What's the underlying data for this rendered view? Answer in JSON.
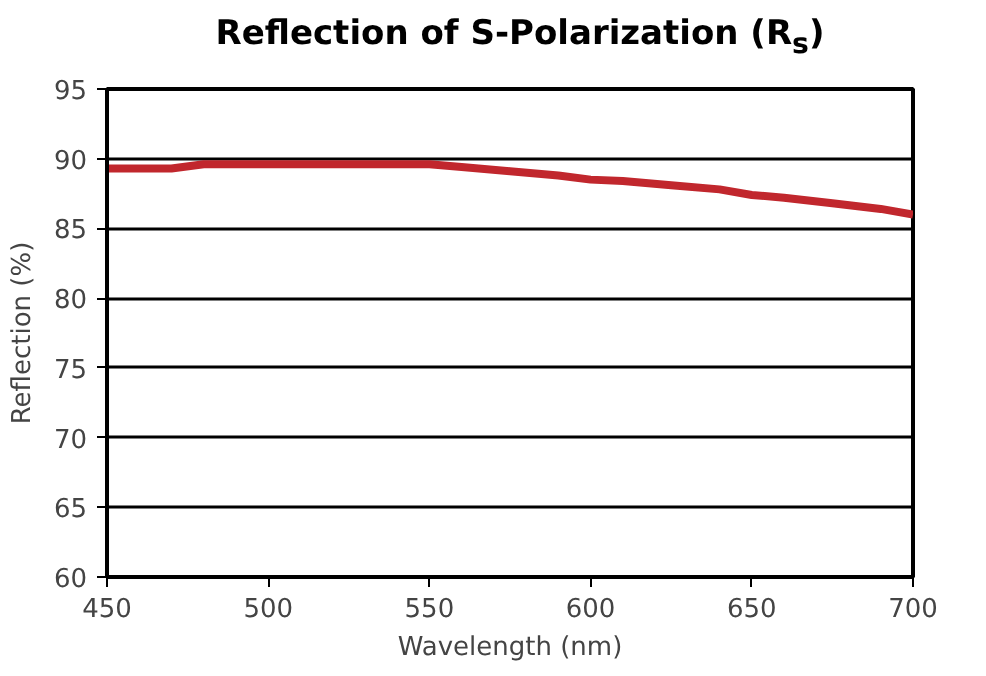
{
  "chart_data": {
    "type": "line",
    "title": "Reflection of S-Polarization (R$_{s}$)",
    "xlabel": "Wavelength (nm)",
    "ylabel": "Reflection (%)",
    "series": [
      {
        "color": "#c1272d",
        "x": [
          450,
          470,
          480,
          500,
          525,
          550,
          560,
          575,
          590,
          600,
          610,
          625,
          640,
          650,
          660,
          675,
          690,
          700
        ],
        "values": [
          89.3,
          89.3,
          89.6,
          89.6,
          89.6,
          89.6,
          89.4,
          89.1,
          88.8,
          88.5,
          88.4,
          88.1,
          87.8,
          87.4,
          87.2,
          86.8,
          86.4,
          86.0
        ]
      }
    ],
    "xlim": [
      450,
      700
    ],
    "xticks": [
      450,
      500,
      550,
      600,
      650,
      700
    ],
    "ylim": [
      60,
      95
    ],
    "yticks": [
      60,
      65,
      70,
      75,
      80,
      85,
      90,
      95
    ],
    "grid": "y",
    "line_style": "solid",
    "marker": "none"
  }
}
